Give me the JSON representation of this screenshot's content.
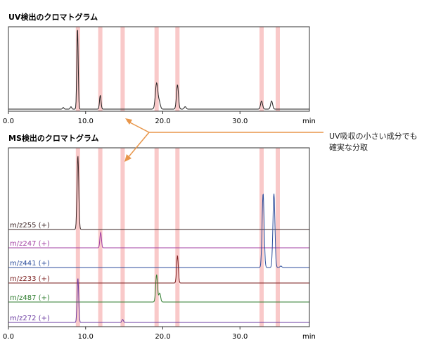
{
  "annotation": {
    "line1": "UV吸収の小さい成分でも",
    "line2": "確実な分取"
  },
  "colors": {
    "highlight": "#f9c9c9",
    "arrow": "#e8964a",
    "uv_trace": "#222222"
  },
  "chart_data": [
    {
      "type": "line",
      "title": "UV検出のクロマトグラム",
      "xlabel": "min",
      "xlim": [
        0,
        39
      ],
      "x_ticks": [
        "0.0",
        "10.0",
        "20.0",
        "30.0"
      ],
      "x_tick_values": [
        0,
        10,
        20,
        30
      ],
      "highlight_bands_min": [
        9.0,
        11.9,
        14.8,
        19.2,
        21.9,
        32.8,
        34.9
      ],
      "series": [
        {
          "name": "UV",
          "color": "#222222",
          "peaks": [
            {
              "t": 7.1,
              "h": 0.02,
              "w": 0.09
            },
            {
              "t": 8.1,
              "h": 0.03,
              "w": 0.09
            },
            {
              "t": 8.95,
              "h": 1.0,
              "w": 0.09
            },
            {
              "t": 11.9,
              "h": 0.17,
              "w": 0.1
            },
            {
              "t": 19.2,
              "h": 0.32,
              "w": 0.16
            },
            {
              "t": 19.55,
              "h": 0.08,
              "w": 0.14
            },
            {
              "t": 21.9,
              "h": 0.3,
              "w": 0.13
            },
            {
              "t": 22.9,
              "h": 0.03,
              "w": 0.12
            },
            {
              "t": 32.8,
              "h": 0.1,
              "w": 0.13
            },
            {
              "t": 34.1,
              "h": 0.1,
              "w": 0.13
            }
          ]
        }
      ]
    },
    {
      "type": "line",
      "title": "MS検出のクロマトグラム",
      "xlabel": "min",
      "xlim": [
        0,
        39
      ],
      "x_ticks": [
        "0.0",
        "10.0",
        "20.0",
        "30.0"
      ],
      "x_tick_values": [
        0,
        10,
        20,
        30
      ],
      "highlight_bands_min": [
        9.0,
        11.9,
        14.8,
        19.2,
        21.9,
        32.8,
        34.9
      ],
      "series": [
        {
          "name": "m/z255 (+)",
          "color": "#3a2323",
          "peaks": [
            {
              "t": 9.0,
              "h": 1.0,
              "w": 0.11
            }
          ]
        },
        {
          "name": "m/z247 (+)",
          "color": "#a13fa3",
          "peaks": [
            {
              "t": 11.95,
              "h": 0.21,
              "w": 0.1
            }
          ]
        },
        {
          "name": "m/z441 (+)",
          "color": "#2c4d9c",
          "peaks": [
            {
              "t": 33.0,
              "h": 1.0,
              "w": 0.13
            },
            {
              "t": 34.4,
              "h": 1.0,
              "w": 0.13
            },
            {
              "t": 35.3,
              "h": 0.02,
              "w": 0.12
            }
          ]
        },
        {
          "name": "m/z233 (+)",
          "color": "#7a1d1d",
          "peaks": [
            {
              "t": 21.9,
              "h": 0.37,
              "w": 0.11
            }
          ]
        },
        {
          "name": "m/z487 (+)",
          "color": "#2f7d2f",
          "peaks": [
            {
              "t": 19.2,
              "h": 0.37,
              "w": 0.12
            },
            {
              "t": 19.6,
              "h": 0.12,
              "w": 0.12
            }
          ]
        },
        {
          "name": "m/z272 (+)",
          "color": "#6a3aa0",
          "peaks": [
            {
              "t": 9.0,
              "h": 0.6,
              "w": 0.1
            },
            {
              "t": 14.8,
              "h": 0.04,
              "w": 0.1
            }
          ]
        }
      ]
    }
  ]
}
